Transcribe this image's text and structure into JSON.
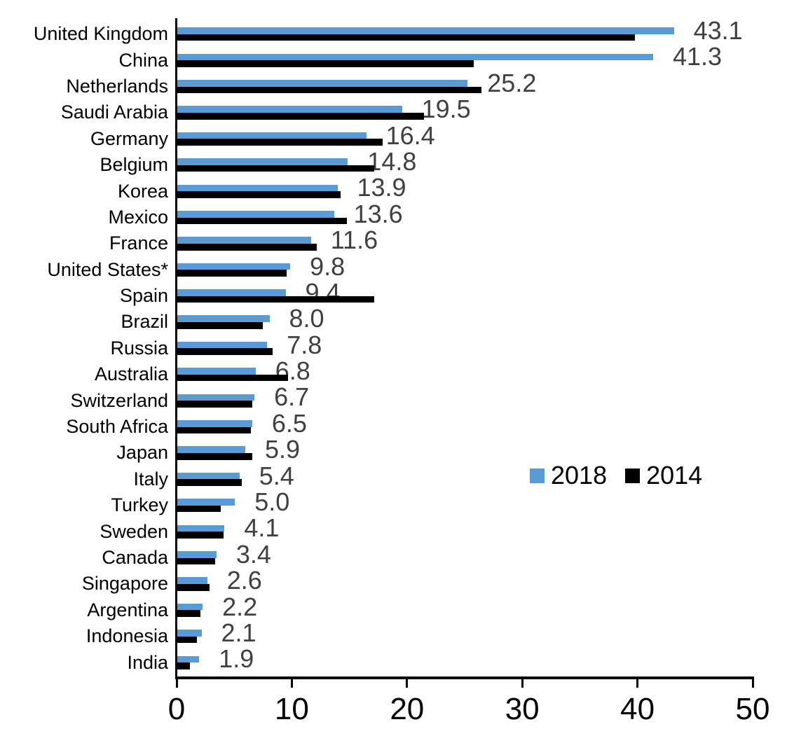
{
  "chart_data": {
    "type": "bar",
    "orientation": "horizontal",
    "title": "",
    "xlabel": "",
    "ylabel": "",
    "categories": [
      "United Kingdom",
      "China",
      "Netherlands",
      "Saudi Arabia",
      "Germany",
      "Belgium",
      "Korea",
      "Mexico",
      "France",
      "United States*",
      "Spain",
      "Brazil",
      "Russia",
      "Australia",
      "Switzerland",
      "South Africa",
      "Japan",
      "Italy",
      "Turkey",
      "Sweden",
      "Canada",
      "Singapore",
      "Argentina",
      "Indonesia",
      "India"
    ],
    "series": [
      {
        "name": "2018",
        "color": "#5B9BD5",
        "data_labels_visible": true,
        "values": [
          43.1,
          41.3,
          25.2,
          19.5,
          16.4,
          14.8,
          13.9,
          13.6,
          11.6,
          9.8,
          9.4,
          8.0,
          7.8,
          6.8,
          6.7,
          6.5,
          5.9,
          5.4,
          5.0,
          4.1,
          3.4,
          2.6,
          2.2,
          2.1,
          1.9
        ]
      },
      {
        "name": "2014",
        "color": "#000000",
        "data_labels_visible": false,
        "values": [
          39.7,
          25.7,
          26.4,
          21.4,
          17.8,
          17.1,
          14.2,
          14.7,
          12.1,
          9.5,
          17.1,
          7.4,
          8.3,
          9.6,
          6.5,
          6.4,
          6.5,
          5.6,
          3.8,
          4.0,
          3.3,
          2.8,
          2.0,
          1.7,
          1.1
        ]
      }
    ],
    "data_labels": [
      "43.1",
      "41.3",
      "25.2",
      "19.5",
      "16.4",
      "14.8",
      "13.9",
      "13.6",
      "11.6",
      "9.8",
      "9.4",
      "8.0",
      "7.8",
      "6.8",
      "6.7",
      "6.5",
      "5.9",
      "5.4",
      "5.0",
      "4.1",
      "3.4",
      "2.6",
      "2.2",
      "2.1",
      "1.9"
    ],
    "data_label_color": "#404040",
    "axis_color": "#000000",
    "xlim": [
      0,
      50
    ],
    "x_ticks": [
      "0",
      "10",
      "20",
      "30",
      "40",
      "50"
    ],
    "grid": false,
    "legend": {
      "position": "middle-right",
      "entries": [
        {
          "label": "2018",
          "color": "#5B9BD5"
        },
        {
          "label": "2014",
          "color": "#000000"
        }
      ]
    }
  }
}
